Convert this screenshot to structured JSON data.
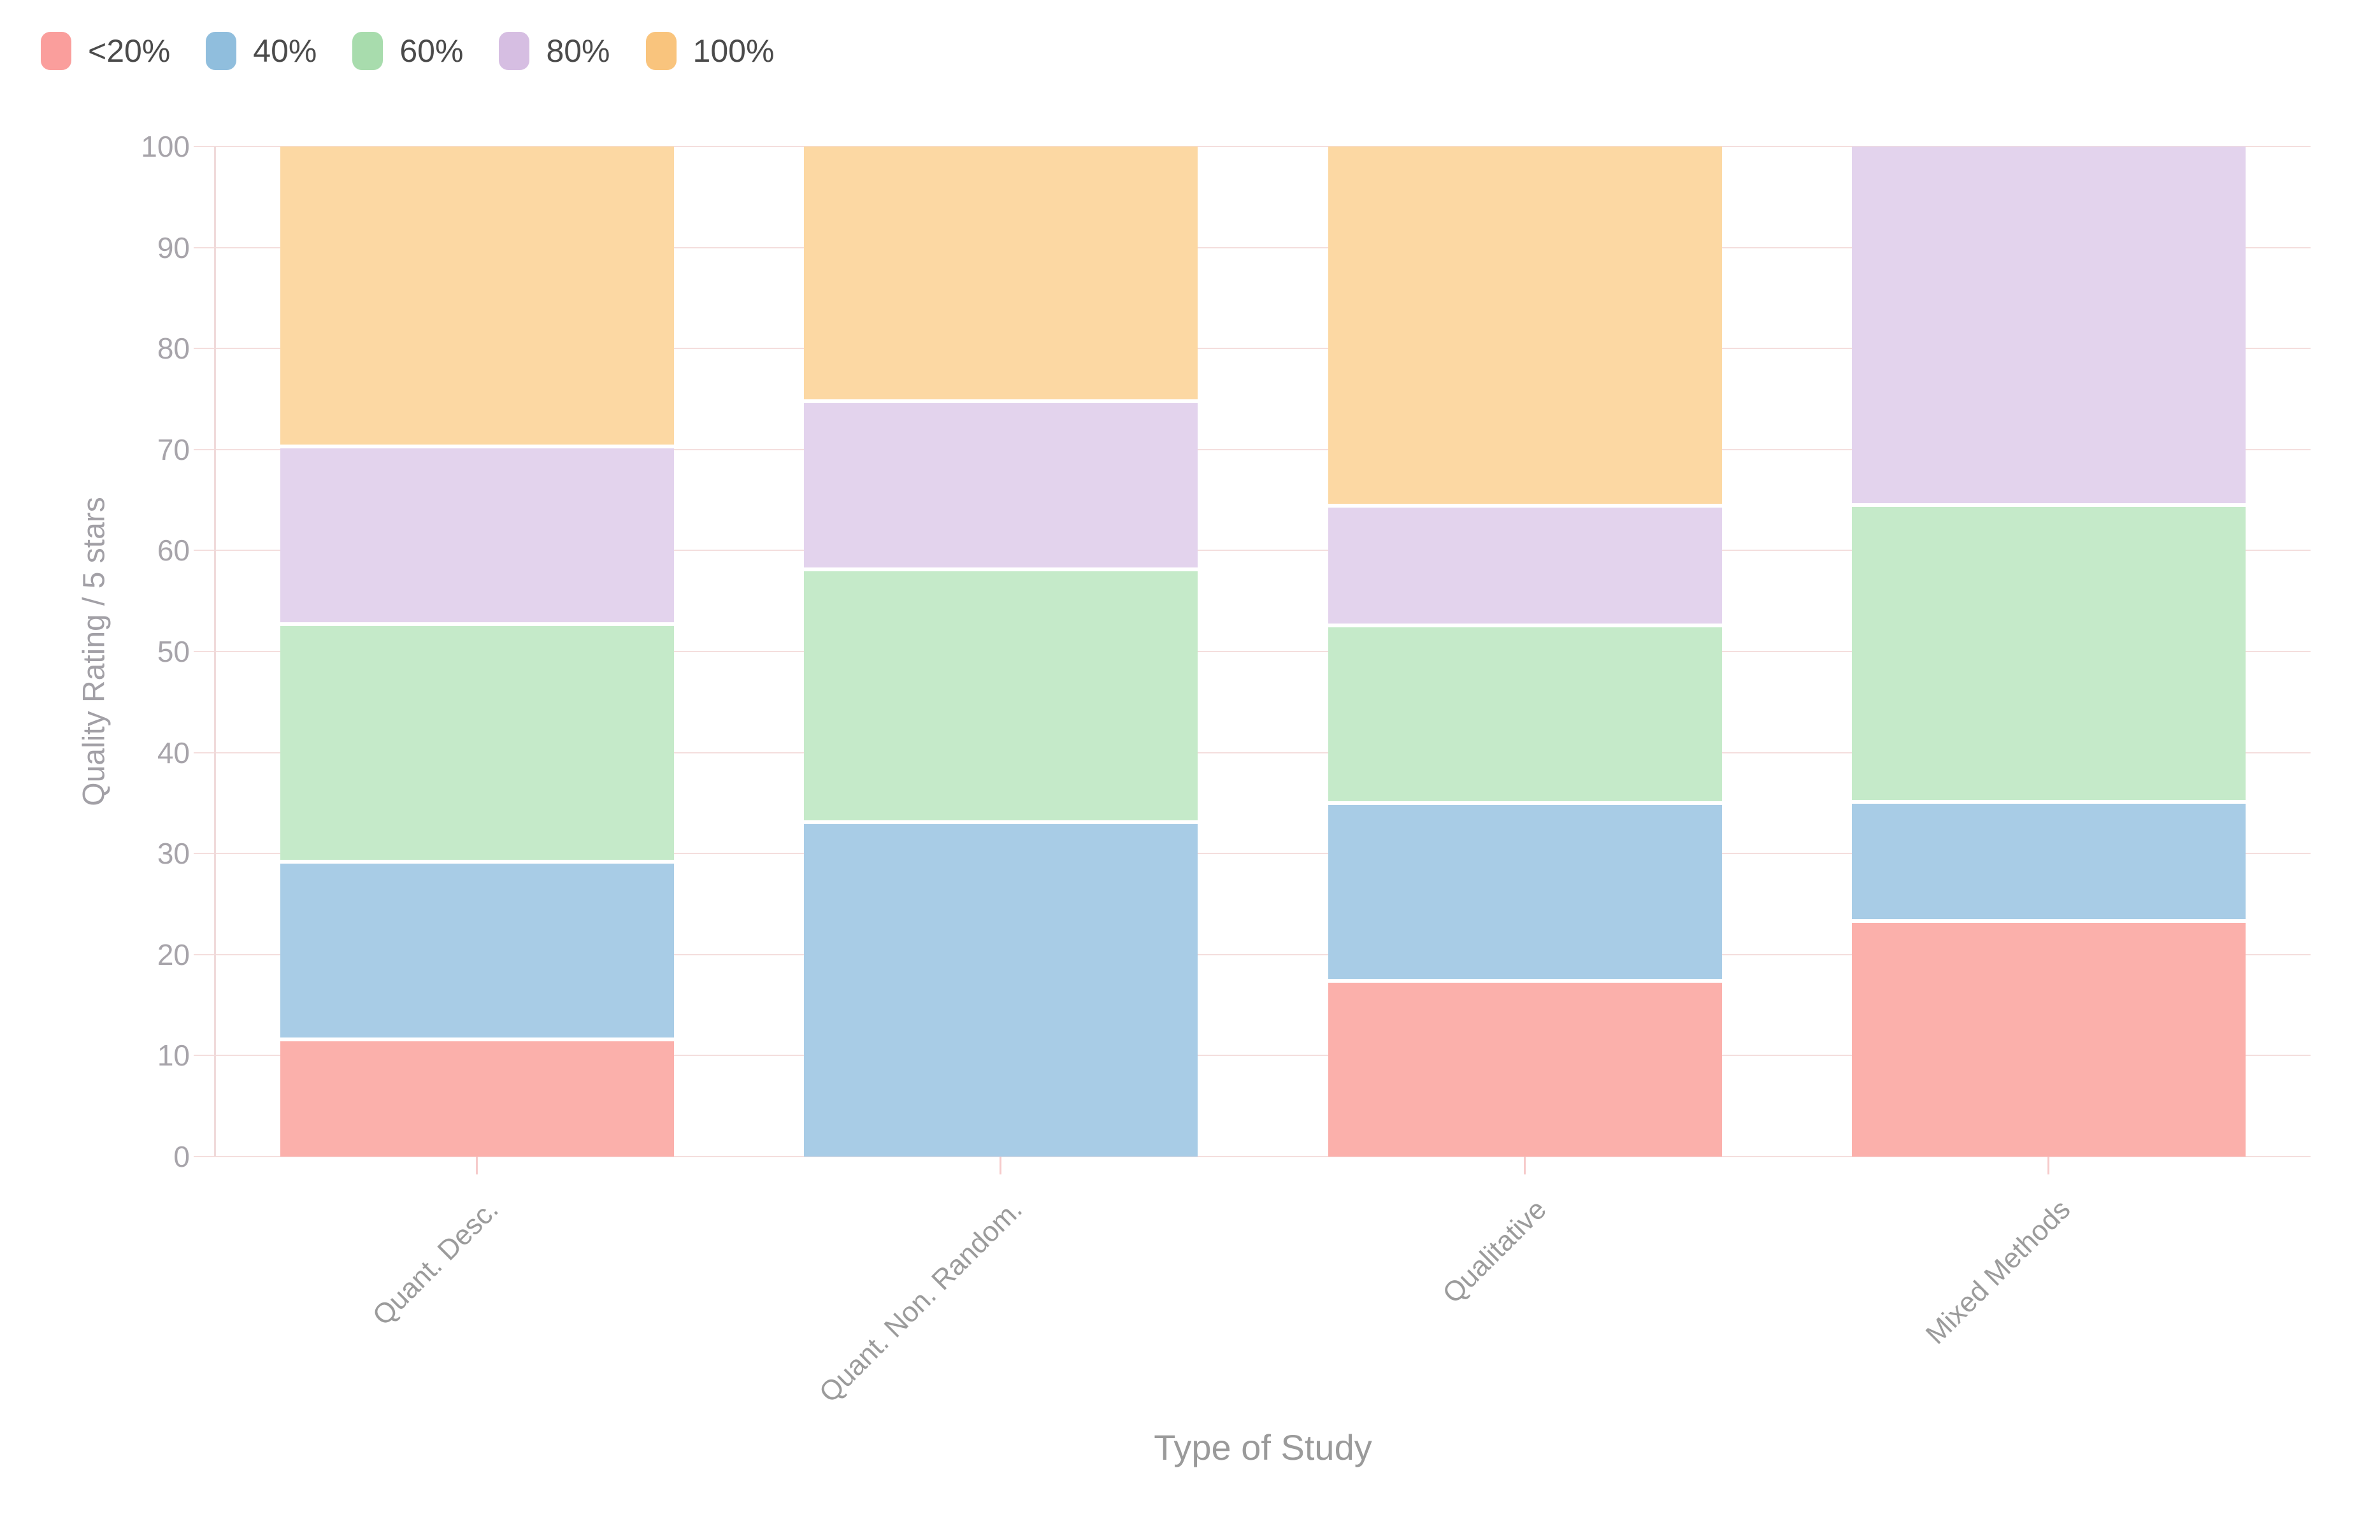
{
  "chart_data": {
    "type": "bar",
    "stacked": true,
    "orientation": "vertical",
    "xlabel": "Type of Study",
    "ylabel": "Quality Rating / 5 stars",
    "ylim": [
      0,
      100
    ],
    "yticks": [
      0,
      10,
      20,
      30,
      40,
      50,
      60,
      70,
      80,
      90,
      100
    ],
    "grid": true,
    "legend_position": "top-left",
    "categories": [
      "Quant. Desc.",
      "Quant. Non. Random.",
      "Qualitative",
      "Mixed Methods"
    ],
    "series": [
      {
        "name": "<20%",
        "legend_color": "#fa9e9c",
        "bar_color": "#fbb0ab",
        "values": [
          11.8,
          0,
          17.6,
          23.5
        ]
      },
      {
        "name": "40%",
        "legend_color": "#90bedd",
        "bar_color": "#a8cce6",
        "values": [
          17.6,
          33.3,
          17.6,
          11.8
        ]
      },
      {
        "name": "60%",
        "legend_color": "#a8dcad",
        "bar_color": "#c5eac9",
        "values": [
          23.5,
          25.0,
          17.6,
          29.4
        ]
      },
      {
        "name": "80%",
        "legend_color": "#d6bee2",
        "bar_color": "#e3d3ed",
        "values": [
          17.6,
          16.7,
          11.8,
          35.3
        ]
      },
      {
        "name": "100%",
        "legend_color": "#f9c47d",
        "bar_color": "#fcd8a3",
        "values": [
          29.4,
          25.0,
          35.3,
          0
        ]
      }
    ],
    "colors": {
      "gridline": "#f4dedd",
      "axis_line": "#f0dada",
      "category_tick": "#f6caca",
      "tick_label": "#a7a4aa",
      "axis_title": "#9a9a9a",
      "legend_text": "#4b4b4b",
      "background": "#ffffff"
    }
  }
}
